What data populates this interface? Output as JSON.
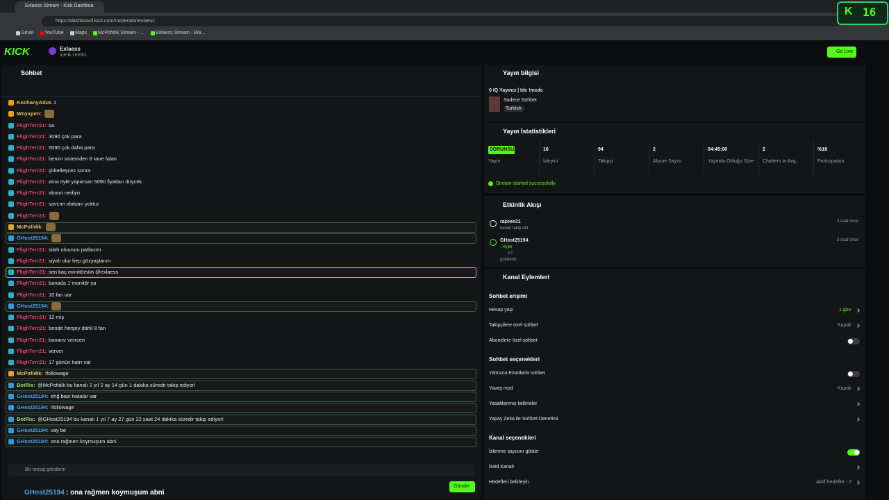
{
  "browser": {
    "tab_title": "Exlaess Stream - Kick Dashboa",
    "url": "https://dashboard.kick.com/moderator/exlaess",
    "bookmarks": [
      "Gmail",
      "YouTube",
      "Maps",
      "McPofidik Stream - ...",
      "Exlaess Stream - Wa..."
    ],
    "overlay_badge": "16"
  },
  "header": {
    "logo": "KICK",
    "channel": "Exlaess",
    "role": "İçerik Üretici",
    "go_live": "Go Live"
  },
  "chat": {
    "title": "Sohbet",
    "messages": [
      {
        "user": "KochanyAdus",
        "text": "1",
        "color": "#e8c15a"
      },
      {
        "user": "Wnyxpen:",
        "text": "",
        "color": "#e8c15a"
      },
      {
        "user": "FlighTerr21:",
        "text": "sa",
        "color": "#e0426a"
      },
      {
        "user": "FlighTerr21:",
        "text": "3090 çok para",
        "color": "#e0426a"
      },
      {
        "user": "FlighTerr21:",
        "text": "5090 çok daha para",
        "color": "#e0426a"
      },
      {
        "user": "FlighTerr21:",
        "text": "benim sistemden 6 tane falan",
        "color": "#e0426a"
      },
      {
        "user": "FlighTerr21:",
        "text": "şirketleşcez sonra",
        "color": "#e0426a"
      },
      {
        "user": "FlighTerr21:",
        "text": "ama öyle yaparsan 5090 fiyatları düşcek",
        "color": "#e0426a"
      },
      {
        "user": "FlighTerr21:",
        "text": "abooo nediyo",
        "color": "#e0426a"
      },
      {
        "user": "FlighTerr21:",
        "text": "savcım alakam yoktur",
        "color": "#e0426a"
      },
      {
        "user": "FlighTerr21:",
        "text": "",
        "color": "#e0426a"
      },
      {
        "user": "McPofidik:",
        "text": "",
        "color": "#e8c15a",
        "border": "#3f5a45"
      },
      {
        "user": "GHost25194:",
        "text": "",
        "color": "#4aa3e8",
        "border": "#3f5a45"
      },
      {
        "user": "FlighTerr21:",
        "text": "silah oluurum patlanım",
        "color": "#e0426a"
      },
      {
        "user": "FlighTerr21:",
        "text": "siyah olur hep gözyaşlarım",
        "color": "#e0426a"
      },
      {
        "user": "FlighTerr21:",
        "text": "sen kaç monitörsün @exlaess",
        "color": "#e0426a",
        "border": "#53fc18"
      },
      {
        "user": "FlighTerr21:",
        "text": "banada 1 monitör ya",
        "color": "#e0426a"
      },
      {
        "user": "FlighTerr21:",
        "text": "10 fan var",
        "color": "#e0426a"
      },
      {
        "user": "GHost25194:",
        "text": "",
        "color": "#4aa3e8",
        "border": "#3f5a45"
      },
      {
        "user": "FlighTerr21:",
        "text": "12 miş",
        "color": "#e0426a"
      },
      {
        "user": "FlighTerr21:",
        "text": "bende herşey dahil 8 fan",
        "color": "#e0426a"
      },
      {
        "user": "FlighTerr21:",
        "text": "banamı verrcen",
        "color": "#e0426a"
      },
      {
        "user": "FlighTerr21:",
        "text": "verver",
        "color": "#e0426a"
      },
      {
        "user": "FlighTerr21:",
        "text": "17 günün hatrı var",
        "color": "#e0426a"
      },
      {
        "user": "McPofidik:",
        "text": "!followage",
        "color": "#e8c15a",
        "border": "#3f5a45"
      },
      {
        "user": "BotRix:",
        "text": "@McPofidik bu kanalı 2 yıl 2 ay 14 gün 1 dakika süredir takip ediyor!",
        "color": "#9be36a",
        "border": "#3f5a45"
      },
      {
        "user": "GHost25194:",
        "text": "ehğ bazı hatalar var",
        "color": "#4aa3e8",
        "border": "#3f5a45"
      },
      {
        "user": "GHost25194:",
        "text": "!followage",
        "color": "#4aa3e8",
        "border": "#3f5a45"
      },
      {
        "user": "BotRix:",
        "text": "@GHost25194 bu kanalı 1 yıl 7 ay 27 gün 22 saat 24 dakika süredir takip ediyor!",
        "color": "#9be36a",
        "border": "#3f5a45"
      },
      {
        "user": "GHost25194:",
        "text": "vay be",
        "color": "#4aa3e8",
        "border": "#3f5a45"
      },
      {
        "user": "GHost25194:",
        "text": "ona rağmen koymuşum abni",
        "color": "#4aa3e8",
        "border": "#3f5a45"
      }
    ],
    "input_placeholder": "Bir mesaj gönderin",
    "send": "Gönder"
  },
  "stream_info": {
    "title": "Yayın bilgisi",
    "stream_title": "0 IQ Yayıncı | Idc !mcdc",
    "category": "Sadece Sohbet",
    "language": "Turkish"
  },
  "stats": {
    "title": "Yayın İstatistikleri",
    "items": [
      {
        "value": "SORUNSUZ",
        "label": "Yayın"
      },
      {
        "value": 16,
        "label": "İzleyici"
      },
      {
        "value": 94,
        "label": "Takipçi"
      },
      {
        "value": 2,
        "label": "Abone Sayısı"
      },
      {
        "value": "04:45:00",
        "label": "Yayında Olduğu Süre"
      },
      {
        "value": 2,
        "label": "Chatters In Avg."
      },
      {
        "value": "%18",
        "label": "Participation"
      }
    ],
    "status": "Stream started successfully."
  },
  "activity": {
    "title": "Etkinlik Akışı",
    "events": [
      {
        "user": "razeee31",
        "lines": [
          "kanalı takip etti"
        ],
        "time": "3 saat önce"
      },
      {
        "user": "GHost25194",
        "lines": [
          ", Hype",
          "10",
          "gönderdi"
        ],
        "time": "3 saat önce"
      }
    ]
  },
  "channel_actions": {
    "title": "Kanal Eylemleri",
    "sections": [
      {
        "title": "Sohbet erişimi",
        "rows": [
          {
            "label": "Hesap yaşı",
            "value": "1 gün"
          },
          {
            "label": "Takipçilere özel sohbet",
            "value": "Kapalı"
          },
          {
            "label": "Abonelere özel sohbet",
            "toggle": false
          }
        ]
      },
      {
        "title": "Sohbet seçenekleri",
        "rows": [
          {
            "label": "Yalnızca Emotlarla sohbet",
            "toggle": false
          },
          {
            "label": "Yavaş mod",
            "value": "Kapalı"
          },
          {
            "label": "Yasaklanmış kelimeler"
          },
          {
            "label": "Yapay Zeka ile Sohbet Denetimi"
          }
        ]
      },
      {
        "title": "Kanal seçenekleri",
        "rows": [
          {
            "label": "İzlenme sayısını göster",
            "toggle": true
          },
          {
            "label": "Raid Kanalı"
          },
          {
            "label": "Hedefleri belirleyin",
            "value": "Aktif hedefler - 2"
          }
        ]
      }
    ]
  },
  "overlay_caption": {
    "user": "GHost25194",
    "text": ": ona rağmen koymuşum abni"
  }
}
